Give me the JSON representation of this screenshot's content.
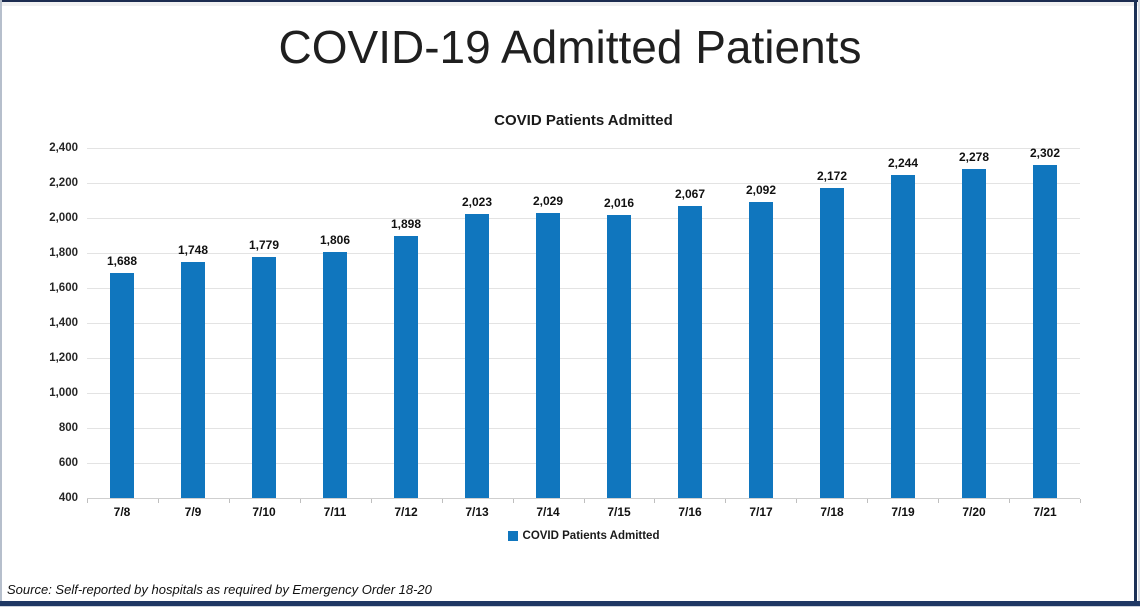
{
  "page": {
    "title": "COVID-19 Admitted Patients",
    "source_note": "Source: Self-reported by hospitals as required by Emergency Order 18-20"
  },
  "chart_data": {
    "type": "bar",
    "title": "COVID Patients Admitted",
    "categories": [
      "7/8",
      "7/9",
      "7/10",
      "7/11",
      "7/12",
      "7/13",
      "7/14",
      "7/15",
      "7/16",
      "7/17",
      "7/18",
      "7/19",
      "7/20",
      "7/21"
    ],
    "values": [
      1688,
      1748,
      1779,
      1806,
      1898,
      2023,
      2029,
      2016,
      2067,
      2092,
      2172,
      2244,
      2278,
      2302
    ],
    "value_labels": [
      "1,688",
      "1,748",
      "1,779",
      "1,806",
      "1,898",
      "2,023",
      "2,029",
      "2,016",
      "2,067",
      "2,092",
      "2,172",
      "2,244",
      "2,278",
      "2,302"
    ],
    "ylim": [
      400,
      2400
    ],
    "y_tick_step": 200,
    "y_tick_labels_top_to_bottom": [
      "2,400",
      "2,200",
      "2,000",
      "1,800",
      "1,600",
      "1,400",
      "1,200",
      "1,000",
      "800",
      "600",
      "400"
    ],
    "grid": true,
    "legend_position": "bottom",
    "legend_label": "COVID Patients Admitted",
    "bar_color": "#1076BE",
    "gridline_color": "#e3e3e3",
    "axis_tick_color": "#bfbfbf",
    "label_color": "#111111"
  },
  "frame": {
    "accent_navy": "#1f3864",
    "border_light": "#b6bfcc"
  }
}
